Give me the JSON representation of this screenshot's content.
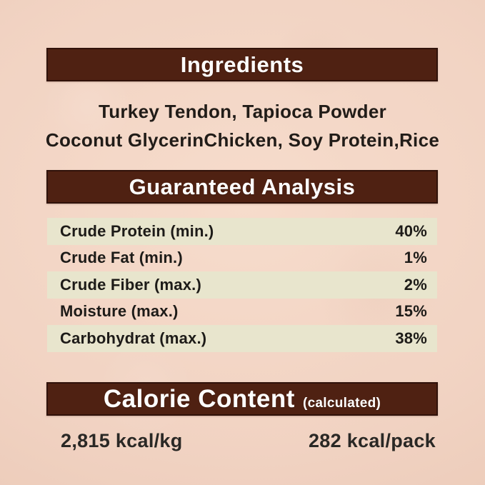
{
  "ingredients": {
    "title": "Ingredients",
    "line1": "Turkey Tendon, Tapioca Powder",
    "line2": "Coconut GlycerinChicken, Soy Protein,Rice"
  },
  "guaranteed_analysis": {
    "title": "Guaranteed Analysis",
    "rows": [
      {
        "name": "Crude Protein (min.)",
        "value": "40%"
      },
      {
        "name": "Crude Fat (min.)",
        "value": "1%"
      },
      {
        "name": "Crude Fiber (max.)",
        "value": "2%"
      },
      {
        "name": "Moisture (max.)",
        "value": "15%"
      },
      {
        "name": "Carbohydrat (max.)",
        "value": "38%"
      }
    ]
  },
  "calorie_content": {
    "title": "Calorie Content",
    "subtitle": "(calculated)",
    "per_kg": "2,815 kcal/kg",
    "per_pack": "282 kcal/pack"
  },
  "colors": {
    "header_background": "#4f2112",
    "header_border": "#30120a",
    "header_text": "#ffffff",
    "alt_row_background": "#e8e5cd",
    "body_text": "#1d1b18",
    "page_background": "#f0d1c0"
  }
}
